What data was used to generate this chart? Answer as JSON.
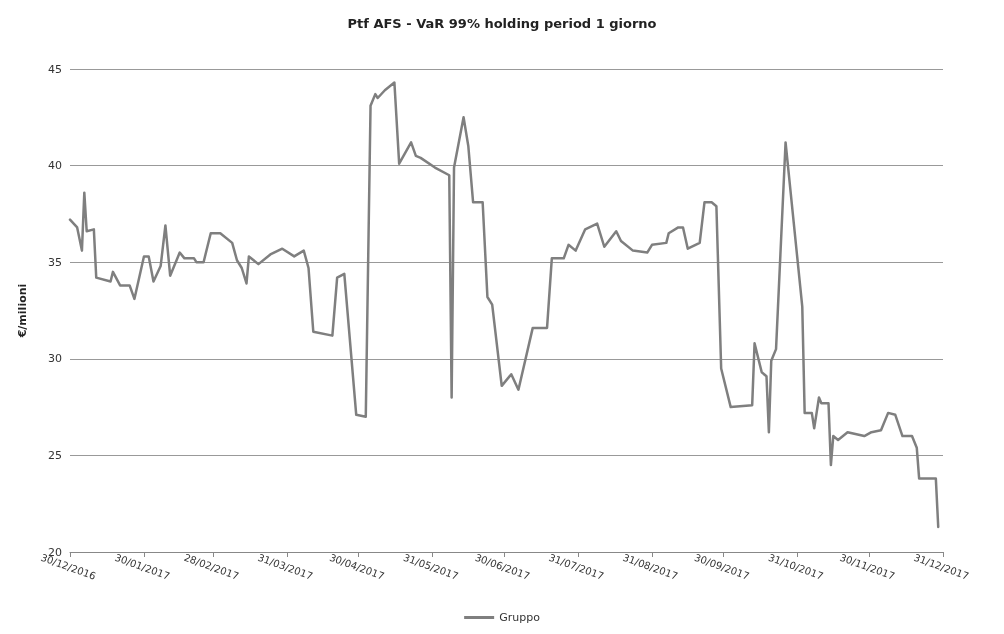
{
  "chart_data": {
    "type": "line",
    "title": "Ptf AFS - VaR 99% holding period 1 giorno",
    "ylabel": "€/milioni",
    "xlim": [
      "2016-12-30",
      "2017-12-31"
    ],
    "xticks": [
      {
        "value": "2016-12-30",
        "label": "30/12/2016"
      },
      {
        "value": "2017-01-30",
        "label": "30/01/2017"
      },
      {
        "value": "2017-02-28",
        "label": "28/02/2017"
      },
      {
        "value": "2017-03-31",
        "label": "31/03/2017"
      },
      {
        "value": "2017-04-30",
        "label": "30/04/2017"
      },
      {
        "value": "2017-05-31",
        "label": "31/05/2017"
      },
      {
        "value": "2017-06-30",
        "label": "30/06/2017"
      },
      {
        "value": "2017-07-31",
        "label": "31/07/2017"
      },
      {
        "value": "2017-08-31",
        "label": "31/08/2017"
      },
      {
        "value": "2017-09-30",
        "label": "30/09/2017"
      },
      {
        "value": "2017-10-31",
        "label": "31/10/2017"
      },
      {
        "value": "2017-11-30",
        "label": "30/11/2017"
      },
      {
        "value": "2017-12-31",
        "label": "31/12/2017"
      }
    ],
    "ylim": [
      20,
      45
    ],
    "yticks": [
      20,
      25,
      30,
      35,
      40,
      45
    ],
    "grid": "y",
    "legend": "bottom",
    "marker": "none",
    "line_style": "solid",
    "x": [
      "2016-12-30",
      "2017-01-02",
      "2017-01-04",
      "2017-01-05",
      "2017-01-06",
      "2017-01-09",
      "2017-01-10",
      "2017-01-16",
      "2017-01-17",
      "2017-01-20",
      "2017-01-24",
      "2017-01-26",
      "2017-01-30",
      "2017-02-01",
      "2017-02-03",
      "2017-02-06",
      "2017-02-08",
      "2017-02-10",
      "2017-02-14",
      "2017-02-16",
      "2017-02-20",
      "2017-02-21",
      "2017-02-24",
      "2017-02-27",
      "2017-03-03",
      "2017-03-08",
      "2017-03-10",
      "2017-03-12",
      "2017-03-14",
      "2017-03-15",
      "2017-03-19",
      "2017-03-24",
      "2017-03-29",
      "2017-04-03",
      "2017-04-07",
      "2017-04-09",
      "2017-04-11",
      "2017-04-19",
      "2017-04-21",
      "2017-04-24",
      "2017-04-29",
      "2017-05-03",
      "2017-05-05",
      "2017-05-07",
      "2017-05-08",
      "2017-05-11",
      "2017-05-15",
      "2017-05-17",
      "2017-05-22",
      "2017-05-24",
      "2017-05-26",
      "2017-06-01",
      "2017-06-07",
      "2017-06-08",
      "2017-06-09",
      "2017-06-13",
      "2017-06-15",
      "2017-06-17",
      "2017-06-21",
      "2017-06-23",
      "2017-06-25",
      "2017-06-29",
      "2017-07-03",
      "2017-07-06",
      "2017-07-12",
      "2017-07-18",
      "2017-07-20",
      "2017-07-25",
      "2017-07-27",
      "2017-07-30",
      "2017-08-03",
      "2017-08-08",
      "2017-08-11",
      "2017-08-16",
      "2017-08-18",
      "2017-08-23",
      "2017-08-29",
      "2017-08-31",
      "2017-09-06",
      "2017-09-07",
      "2017-09-11",
      "2017-09-13",
      "2017-09-15",
      "2017-09-20",
      "2017-09-22",
      "2017-09-25",
      "2017-09-27",
      "2017-09-29",
      "2017-10-03",
      "2017-10-12",
      "2017-10-13",
      "2017-10-16",
      "2017-10-18",
      "2017-10-19",
      "2017-10-20",
      "2017-10-22",
      "2017-10-26",
      "2017-11-02",
      "2017-11-03",
      "2017-11-06",
      "2017-11-07",
      "2017-11-09",
      "2017-11-10",
      "2017-11-13",
      "2017-11-14",
      "2017-11-15",
      "2017-11-17",
      "2017-11-21",
      "2017-11-28",
      "2017-12-01",
      "2017-12-05",
      "2017-12-08",
      "2017-12-11",
      "2017-12-14",
      "2017-12-18",
      "2017-12-20",
      "2017-12-21",
      "2017-12-28",
      "2017-12-29"
    ],
    "series": [
      {
        "name": "Gruppo",
        "color": "#7f7f7f",
        "values": [
          37.2,
          36.8,
          35.6,
          38.6,
          36.6,
          36.7,
          34.2,
          34.0,
          34.5,
          33.8,
          33.8,
          33.1,
          35.3,
          35.3,
          34.0,
          34.8,
          36.9,
          34.3,
          35.5,
          35.2,
          35.2,
          35.0,
          35.0,
          36.5,
          36.5,
          36.0,
          35.1,
          34.7,
          33.9,
          35.3,
          34.9,
          35.4,
          35.7,
          35.3,
          35.6,
          34.7,
          31.4,
          31.2,
          34.2,
          34.4,
          27.1,
          27.0,
          43.1,
          43.7,
          43.5,
          43.9,
          44.3,
          40.1,
          41.2,
          40.5,
          40.4,
          39.9,
          39.5,
          28.0,
          39.9,
          42.5,
          41.0,
          38.1,
          38.1,
          33.2,
          32.8,
          28.6,
          29.2,
          28.4,
          31.6,
          31.6,
          35.2,
          35.2,
          35.9,
          35.6,
          36.7,
          37.0,
          35.8,
          36.6,
          36.1,
          35.6,
          35.5,
          35.9,
          36.0,
          36.5,
          36.8,
          36.8,
          35.7,
          36.0,
          38.1,
          38.1,
          37.9,
          29.5,
          27.5,
          27.6,
          30.8,
          29.3,
          29.1,
          26.2,
          29.9,
          30.5,
          41.2,
          32.7,
          27.2,
          27.2,
          26.4,
          28.0,
          27.7,
          27.7,
          24.5,
          26.0,
          25.8,
          26.2,
          26.0,
          26.2,
          26.3,
          27.2,
          27.1,
          26.0,
          26.0,
          25.4,
          23.8,
          23.8,
          21.3
        ]
      }
    ]
  }
}
